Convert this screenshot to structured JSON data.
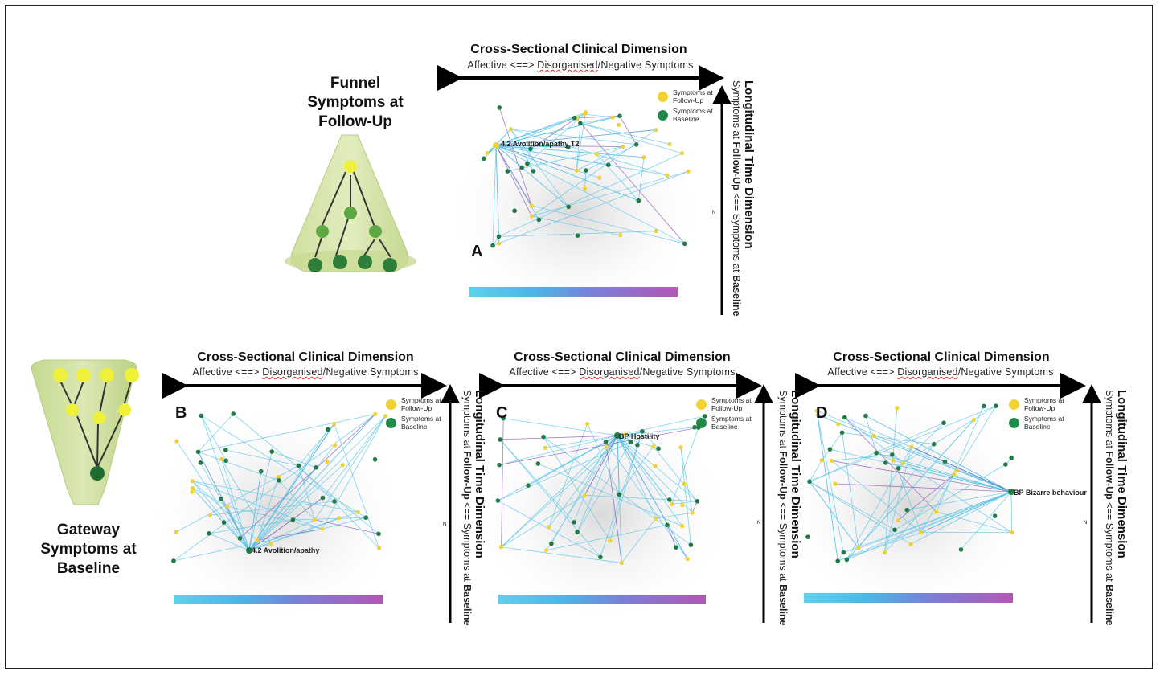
{
  "panel_a": {
    "letter": "A",
    "title": "Cross-Sectional Clinical Dimension",
    "subtitle_left": "Affective <==> ",
    "subtitle_wavy": "Disorganised",
    "subtitle_right": "/Negative Symptoms",
    "highlight_label": "4.2 Avolition/apathy T2"
  },
  "panel_b": {
    "letter": "B",
    "title": "Cross-Sectional Clinical Dimension",
    "subtitle_left": "Affective <==> ",
    "subtitle_wavy": "Disorganised",
    "subtitle_right": "/Negative Symptoms",
    "highlight_label": "4.2 Avolition/apathy"
  },
  "panel_c": {
    "letter": "C",
    "title": "Cross-Sectional Clinical Dimension",
    "subtitle_left": "Affective <==> ",
    "subtitle_wavy": "Disorganised",
    "subtitle_right": "/Negative Symptoms",
    "highlight_label": "BP Hostility"
  },
  "panel_d": {
    "letter": "D",
    "title": "Cross-Sectional Clinical Dimension",
    "subtitle_left": "Affective <==> ",
    "subtitle_wavy": "Disorganised",
    "subtitle_right": "/Negative Symptoms",
    "highlight_label": "BP Bizarre behaviour"
  },
  "longitudinal": {
    "title": "Longitudinal Time Dimension",
    "sub_prefix": "Symptoms at ",
    "sub_followup": "Follow-Up",
    "sub_middle": " <== Symptoms at ",
    "sub_baseline": "Baseline"
  },
  "legend": {
    "follow_up": "Symptoms at Follow-Up",
    "baseline": "Symptoms at Baseline",
    "follow_up_color": "#f2d233",
    "baseline_color": "#1f8a4a"
  },
  "funnel_top": {
    "label": "Funnel Symptoms at Follow-Up"
  },
  "funnel_bottom": {
    "label": "Gateway Symptoms at Baseline"
  },
  "axis_marker": "N"
}
